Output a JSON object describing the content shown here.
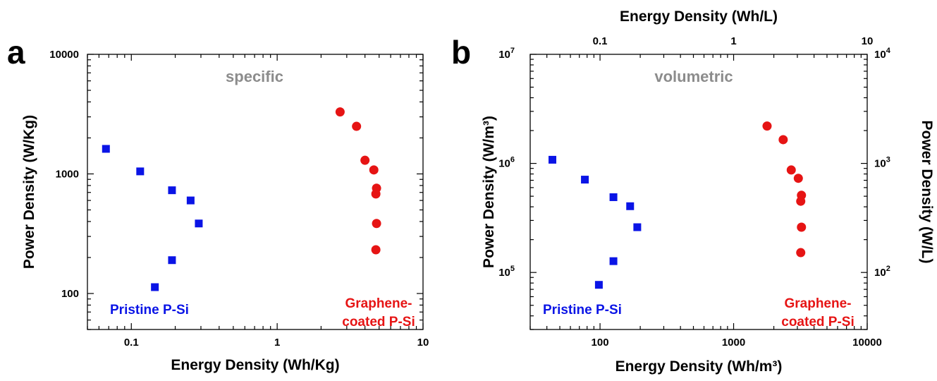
{
  "colors": {
    "pristine": "#0a14e6",
    "coated": "#e61414",
    "corner_label": "#8c8c8c"
  },
  "chart_data": [
    {
      "type": "scatter",
      "panel_letter": "a",
      "corner_label": "specific",
      "xlabel": "Energy Density (Wh/Kg)",
      "ylabel": "Power Density (W/Kg)",
      "xscale": "log",
      "yscale": "log",
      "xlim": [
        0.05,
        10
      ],
      "ylim": [
        50,
        10000
      ],
      "x_ticks": [
        {
          "v": 0.1,
          "label": "0.1"
        },
        {
          "v": 1,
          "label": "1"
        },
        {
          "v": 10,
          "label": "10"
        }
      ],
      "y_ticks": [
        {
          "v": 100,
          "label": "100"
        },
        {
          "v": 1000,
          "label": "1000"
        },
        {
          "v": 10000,
          "label": "10000"
        }
      ],
      "series_labels": [
        {
          "series": 0,
          "lines": [
            "Pristine P-Si"
          ]
        },
        {
          "series": 1,
          "lines": [
            "Graphene-",
            "coated P-Si"
          ]
        }
      ],
      "series": [
        {
          "name": "Pristine P-Si",
          "marker": "square",
          "color": "#0a14e6",
          "points": [
            [
              0.067,
              1620
            ],
            [
              0.115,
              1050
            ],
            [
              0.19,
              730
            ],
            [
              0.255,
              600
            ],
            [
              0.29,
              385
            ],
            [
              0.19,
              190
            ],
            [
              0.145,
              113
            ]
          ]
        },
        {
          "name": "Graphene-coated P-Si",
          "marker": "circle",
          "color": "#e61414",
          "points": [
            [
              2.7,
              3300
            ],
            [
              3.5,
              2500
            ],
            [
              4.0,
              1300
            ],
            [
              4.6,
              1080
            ],
            [
              4.8,
              760
            ],
            [
              4.75,
              680
            ],
            [
              4.8,
              385
            ],
            [
              4.75,
              232
            ]
          ]
        }
      ]
    },
    {
      "type": "scatter",
      "panel_letter": "b",
      "corner_label": "volumetric",
      "xlabel": "Energy Density (Wh/m³)",
      "xlabel_top": "Energy Density (Wh/L)",
      "ylabel": "Power Density (W/m³)",
      "ylabel_right": "Power Density (W/L)",
      "xscale": "log",
      "yscale": "log",
      "xlim": [
        30,
        10000
      ],
      "ylim": [
        30000,
        10000000
      ],
      "x_ticks": [
        {
          "v": 100,
          "label": "100"
        },
        {
          "v": 1000,
          "label": "1000"
        },
        {
          "v": 10000,
          "label": "10000"
        }
      ],
      "x_ticks_top": [
        {
          "v": 0.1,
          "label": "0.1"
        },
        {
          "v": 1,
          "label": "1"
        },
        {
          "v": 10,
          "label": "10"
        }
      ],
      "y_ticks": [
        {
          "v": 100000,
          "base": "10",
          "exp": "5"
        },
        {
          "v": 1000000,
          "base": "10",
          "exp": "6"
        },
        {
          "v": 10000000,
          "base": "10",
          "exp": "7"
        }
      ],
      "y_ticks_right": [
        {
          "v": 100,
          "base": "10",
          "exp": "2"
        },
        {
          "v": 1000,
          "base": "10",
          "exp": "3"
        },
        {
          "v": 10000,
          "base": "10",
          "exp": "4"
        }
      ],
      "series_labels": [
        {
          "series": 0,
          "lines": [
            "Pristine P-Si"
          ]
        },
        {
          "series": 1,
          "lines": [
            "Graphene-",
            "coated P-Si"
          ]
        }
      ],
      "series": [
        {
          "name": "Pristine P-Si",
          "marker": "square",
          "color": "#0a14e6",
          "points": [
            [
              44,
              1080000
            ],
            [
              77,
              710000
            ],
            [
              126,
              490000
            ],
            [
              168,
              405000
            ],
            [
              190,
              260000
            ],
            [
              126,
              127000
            ],
            [
              98,
              77000
            ]
          ]
        },
        {
          "name": "Graphene-coated P-Si",
          "marker": "circle",
          "color": "#e61414",
          "points": [
            [
              1780,
              2200000
            ],
            [
              2350,
              1650000
            ],
            [
              2700,
              870000
            ],
            [
              3050,
              730000
            ],
            [
              3220,
              510000
            ],
            [
              3180,
              450000
            ],
            [
              3220,
              260000
            ],
            [
              3180,
              152000
            ]
          ]
        }
      ]
    }
  ]
}
